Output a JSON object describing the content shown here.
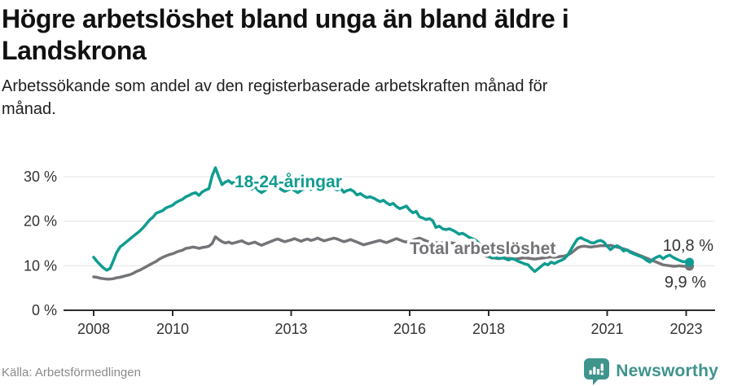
{
  "title_line1": "Högre arbetslöshet bland unga än bland äldre i",
  "title_line2": "Landskrona",
  "subtitle_line1": "Arbetssökande som andel av den registerbaserade arbetskraften månad för",
  "subtitle_line2": "månad.",
  "source": "Källa: Arbetsförmedlingen",
  "logo": {
    "name": "Newsworthy",
    "icon": "newsworthy-bar-chart-bubble-icon"
  },
  "colors": {
    "accent_teal": "#109c91",
    "line_gray": "#747478",
    "label_text": "#333333",
    "axis_line": "#2b2b2b",
    "axis_text": "#333333",
    "grid": "#e4e4e4",
    "logo_teal": "#3f948c",
    "title_text": "#111111",
    "source_text": "#8b8b8b"
  },
  "chart_data": {
    "type": "line",
    "title": "Högre arbetslöshet bland unga än bland äldre i Landskrona",
    "subtitle": "Arbetssökande som andel av den registerbaserade arbetskraften månad för månad.",
    "x_unit": "month",
    "x_start_year": 2008,
    "x_end_label": "2023-02",
    "x_tick_years": [
      2008,
      2010,
      2013,
      2016,
      2018,
      2021,
      2023
    ],
    "x_tick_labels": [
      "2008",
      "2010",
      "2013",
      "2016",
      "2018",
      "2021",
      "2023"
    ],
    "y_ticks": [
      0,
      10,
      20,
      30
    ],
    "y_tick_labels": [
      "0 %",
      "10 %",
      "20 %",
      "30 %"
    ],
    "ylim": [
      0,
      33
    ],
    "grid": true,
    "legend_position": "inline-labels",
    "series": [
      {
        "name": "18-24-åringar",
        "color": "#109c91",
        "end_value": 10.8,
        "end_label": "10,8 %",
        "values": [
          11.9,
          11.0,
          10.2,
          9.5,
          9.0,
          9.4,
          11.2,
          13.0,
          14.2,
          14.8,
          15.4,
          16.0,
          16.6,
          17.2,
          17.8,
          18.5,
          19.4,
          20.3,
          20.9,
          21.8,
          22.1,
          22.4,
          23.0,
          23.3,
          23.6,
          24.2,
          24.6,
          24.9,
          25.5,
          25.8,
          26.2,
          26.4,
          25.8,
          26.6,
          27.0,
          27.3,
          30.2,
          32.0,
          30.0,
          28.2,
          28.8,
          29.1,
          28.5,
          29.0,
          29.4,
          28.8,
          28.2,
          27.6,
          27.2,
          27.8,
          26.9,
          26.4,
          26.9,
          27.4,
          27.9,
          28.3,
          27.6,
          27.1,
          26.7,
          27.0,
          27.4,
          26.9,
          26.4,
          26.9,
          27.3,
          27.7,
          27.1,
          27.5,
          27.9,
          27.4,
          27.0,
          27.3,
          27.7,
          27.3,
          27.0,
          27.4,
          26.5,
          26.9,
          27.1,
          26.7,
          25.9,
          26.2,
          25.7,
          25.3,
          25.5,
          25.2,
          24.8,
          24.4,
          24.7,
          24.1,
          23.7,
          24.0,
          23.3,
          22.8,
          23.1,
          23.4,
          22.5,
          21.9,
          22.2,
          21.0,
          20.7,
          20.4,
          20.6,
          20.1,
          18.6,
          18.9,
          18.3,
          18.1,
          18.3,
          18.0,
          17.6,
          17.1,
          17.3,
          16.9,
          16.4,
          16.1,
          15.8,
          15.1,
          14.2,
          13.2,
          12.4,
          11.7,
          12.0,
          11.6,
          11.9,
          11.6,
          11.3,
          11.6,
          11.4,
          11.0,
          10.7,
          10.4,
          10.2,
          9.4,
          8.7,
          9.3,
          9.9,
          10.5,
          10.2,
          10.8,
          10.5,
          10.9,
          11.2,
          11.6,
          12.4,
          13.6,
          14.9,
          16.0,
          16.3,
          15.9,
          15.6,
          15.2,
          15.1,
          15.5,
          15.7,
          15.3,
          14.4,
          13.6,
          14.2,
          14.5,
          14.1,
          13.3,
          13.6,
          13.0,
          12.7,
          12.4,
          12.1,
          11.8,
          11.2,
          10.8,
          11.5,
          11.9,
          12.2,
          11.6,
          12.1,
          12.4,
          11.9,
          11.5,
          11.2,
          10.9,
          10.9,
          10.8
        ]
      },
      {
        "name": "Total arbetslöshet",
        "color": "#747478",
        "end_value": 9.9,
        "end_label": "9,9 %",
        "values": [
          7.5,
          7.4,
          7.2,
          7.1,
          7.0,
          7.0,
          7.1,
          7.3,
          7.4,
          7.6,
          7.8,
          8.0,
          8.3,
          8.7,
          9.0,
          9.4,
          9.8,
          10.2,
          10.6,
          11.0,
          11.5,
          11.9,
          12.2,
          12.5,
          12.7,
          13.0,
          13.3,
          13.5,
          13.9,
          14.0,
          14.2,
          14.1,
          13.9,
          14.1,
          14.2,
          14.4,
          15.0,
          16.5,
          15.9,
          15.4,
          15.1,
          15.3,
          15.0,
          15.2,
          15.4,
          15.6,
          15.2,
          14.9,
          15.1,
          15.3,
          14.9,
          14.6,
          14.9,
          15.2,
          15.5,
          15.8,
          16.0,
          15.7,
          15.4,
          15.6,
          15.8,
          16.1,
          15.8,
          15.5,
          15.8,
          16.0,
          15.7,
          15.9,
          16.2,
          15.9,
          15.6,
          15.8,
          16.0,
          16.2,
          16.0,
          15.7,
          15.4,
          15.6,
          15.9,
          15.6,
          15.3,
          15.0,
          14.7,
          14.9,
          15.1,
          15.3,
          15.5,
          15.7,
          15.4,
          15.2,
          15.5,
          15.8,
          16.1,
          15.8,
          15.5,
          15.3,
          15.5,
          15.7,
          16.0,
          16.2,
          15.9,
          15.6,
          15.3,
          15.5,
          15.2,
          15.0,
          15.2,
          15.4,
          15.3,
          15.1,
          15.0,
          14.8,
          14.6,
          14.4,
          14.2,
          13.9,
          13.4,
          12.9,
          12.5,
          12.2,
          12.0,
          11.8,
          11.7,
          11.6,
          11.7,
          11.8,
          11.7,
          11.6,
          11.5,
          11.6,
          11.7,
          11.8,
          11.7,
          11.6,
          11.5,
          11.6,
          11.7,
          11.8,
          11.9,
          12.0,
          11.9,
          12.0,
          12.1,
          12.2,
          12.4,
          12.8,
          13.4,
          14.0,
          14.3,
          14.4,
          14.3,
          14.2,
          14.3,
          14.4,
          14.5,
          14.5,
          14.5,
          14.6,
          14.4,
          14.2,
          14.0,
          13.8,
          13.5,
          13.2,
          12.9,
          12.6,
          12.3,
          12.0,
          11.7,
          11.4,
          11.1,
          10.8,
          10.5,
          10.2,
          10.1,
          10.0,
          9.9,
          9.9,
          10.0,
          9.9,
          9.9,
          9.9
        ]
      }
    ]
  }
}
